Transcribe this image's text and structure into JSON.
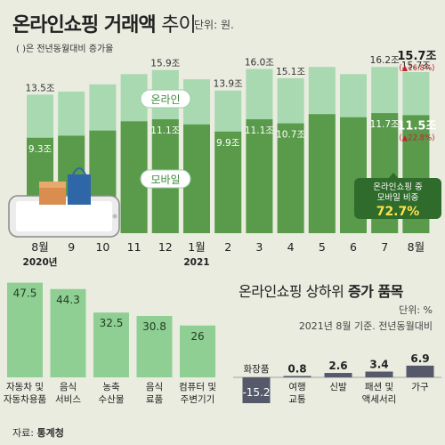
{
  "header": {
    "title_bold": "온라인쇼핑 거래액",
    "title_thin": "추이",
    "unit": "단위: 원.",
    "note": "( )은 전년동월대비 증가율"
  },
  "top_labels": {
    "online": "온라인",
    "mobile": "모바일",
    "callout_line1": "온라인쇼핑 중",
    "callout_line2": "모바일 비중",
    "callout_value": "72.7%"
  },
  "bottom": {
    "title_normal": "온라인쇼핑 상하위",
    "title_bold": "증가 품목",
    "unit": "단위: %",
    "basis": "2021년 8월 기준. 전년동월대비"
  },
  "source": {
    "label": "자료:",
    "org": "통계청"
  },
  "colors": {
    "online": "#a8d9b1",
    "mobile": "#5a9a4b",
    "green_bar": "#8fcf93",
    "negative_bar": "#55596a",
    "increase": "#c4242c",
    "accent": "#1c1c1c"
  },
  "chart_data": [
    {
      "type": "bar",
      "stacked": "overlay",
      "categories": [
        "8월",
        "9",
        "10",
        "11",
        "12",
        "1월",
        "2",
        "3",
        "4",
        "5",
        "6",
        "7",
        "8월"
      ],
      "year_labels": [
        "2020년",
        "",
        "",
        "",
        "",
        "2021",
        "",
        "",
        "",
        "",
        "",
        "",
        ""
      ],
      "series": [
        {
          "name": "온라인",
          "values": [
            13.5,
            13.8,
            14.5,
            15.5,
            15.9,
            15.0,
            13.9,
            16.0,
            15.1,
            16.2,
            15.5,
            16.2,
            15.7
          ],
          "labels": [
            "13.5조",
            "",
            "",
            "",
            "15.9조",
            "",
            "13.9조",
            "16.0조",
            "15.1조",
            "",
            "",
            "16.2조",
            "15.7조"
          ]
        },
        {
          "name": "모바일",
          "values": [
            9.3,
            9.5,
            10.0,
            10.9,
            11.1,
            10.6,
            9.9,
            11.1,
            10.7,
            11.6,
            11.3,
            11.7,
            11.5
          ],
          "labels": [
            "9.3조",
            "",
            "",
            "",
            "11.1조",
            "",
            "9.9조",
            "11.1조",
            "10.7조",
            "",
            "",
            "11.7조",
            "11.5조"
          ]
        }
      ],
      "growth_labels": {
        "online": "(▲16.8%)",
        "mobile": "(▲22.8%)"
      },
      "ylim": [
        0,
        17
      ]
    },
    {
      "type": "bar",
      "title": "",
      "categories": [
        "자동차 및 자동차용품",
        "음식 서비스",
        "농축 수산물",
        "음식 료품",
        "컴퓨터 및 주변기기"
      ],
      "values": [
        47.5,
        44.3,
        32.5,
        30.8,
        26
      ],
      "value_labels": [
        "47.5",
        "44.3",
        "32.5",
        "30.8",
        "26"
      ],
      "ylim": [
        0,
        50
      ]
    },
    {
      "type": "bar",
      "categories": [
        "화장품",
        "여행 교통",
        "신발",
        "패션 및 액세서리",
        "가구"
      ],
      "values": [
        -15.2,
        0.8,
        2.6,
        3.4,
        6.9
      ],
      "value_labels": [
        "-15.2",
        "0.8",
        "2.6",
        "3.4",
        "6.9"
      ],
      "ylim": [
        -16,
        8
      ]
    }
  ]
}
